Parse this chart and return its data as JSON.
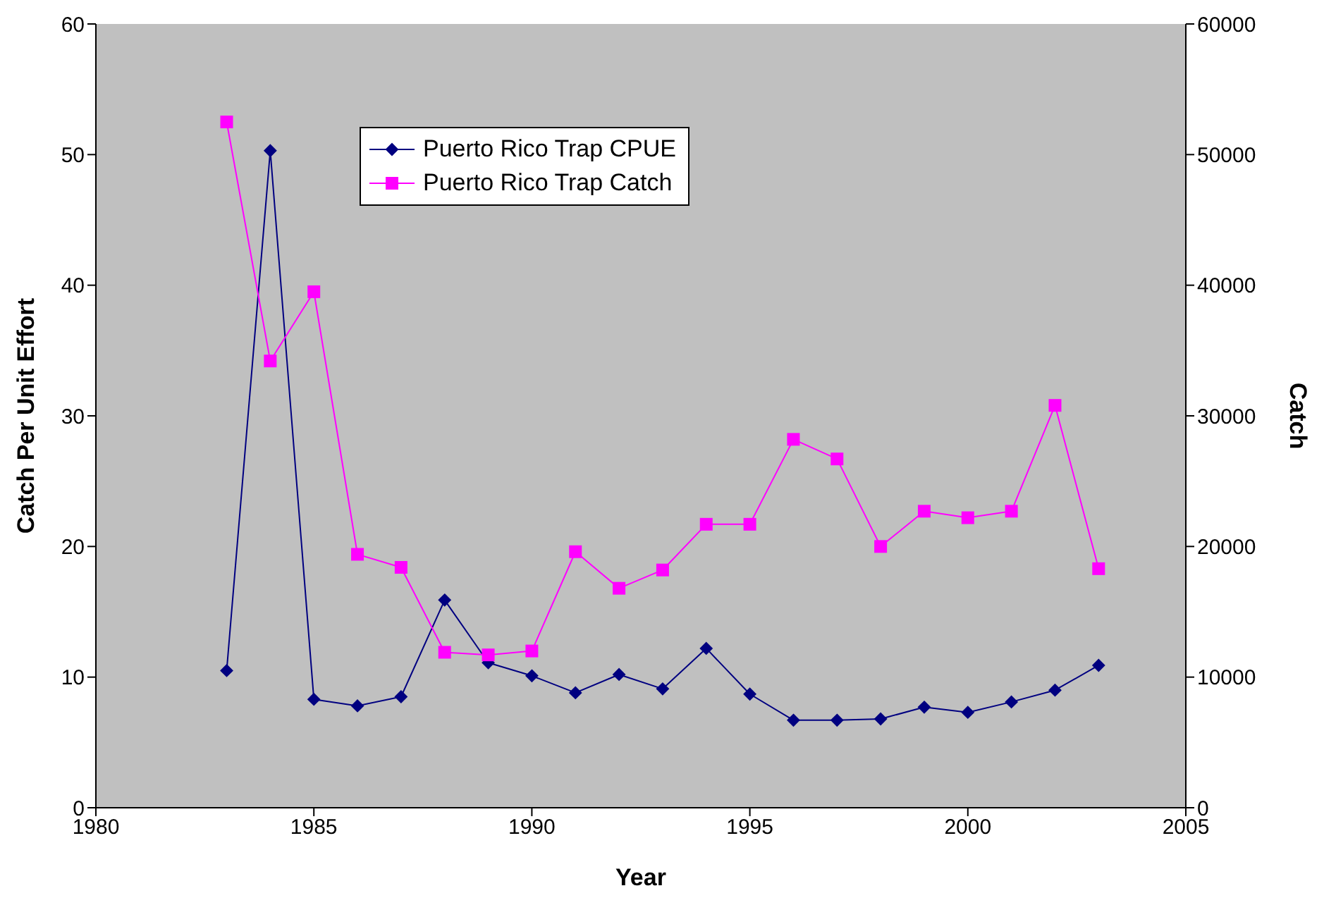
{
  "chart_data": {
    "type": "line",
    "xlabel": "Year",
    "ylabel": "Catch Per Unit Effort",
    "y2label": "Catch",
    "x": [
      1983,
      1984,
      1985,
      1986,
      1987,
      1988,
      1989,
      1990,
      1991,
      1992,
      1993,
      1994,
      1995,
      1996,
      1997,
      1998,
      1999,
      2000,
      2001,
      2002,
      2003
    ],
    "series": [
      {
        "name": "Puerto Rico Trap CPUE",
        "color": "#000080",
        "marker": "diamond",
        "values": [
          10.5,
          50.3,
          8.3,
          7.8,
          8.5,
          15.9,
          11.1,
          10.1,
          8.8,
          10.2,
          9.1,
          12.2,
          8.7,
          6.7,
          6.7,
          6.8,
          7.7,
          7.3,
          8.1,
          9.0,
          10.9
        ]
      },
      {
        "name": "Puerto Rico Trap Catch",
        "color": "#ff00ff",
        "marker": "square",
        "axis": "y2",
        "values": [
          52500,
          34200,
          39500,
          19400,
          18400,
          11900,
          11700,
          12000,
          19600,
          16800,
          18200,
          21700,
          21700,
          28200,
          26700,
          20000,
          22700,
          22200,
          22700,
          30800,
          18300
        ]
      }
    ],
    "xlim": [
      1980,
      2005
    ],
    "xticks": [
      1980,
      1985,
      1990,
      1995,
      2000,
      2005
    ],
    "ylim": [
      0,
      60
    ],
    "yticks": [
      0,
      10,
      20,
      30,
      40,
      50,
      60
    ],
    "y2lim": [
      0,
      60000
    ],
    "y2ticks": [
      0,
      10000,
      20000,
      30000,
      40000,
      50000,
      60000
    ],
    "legend": "top left",
    "line_style": "solid"
  }
}
